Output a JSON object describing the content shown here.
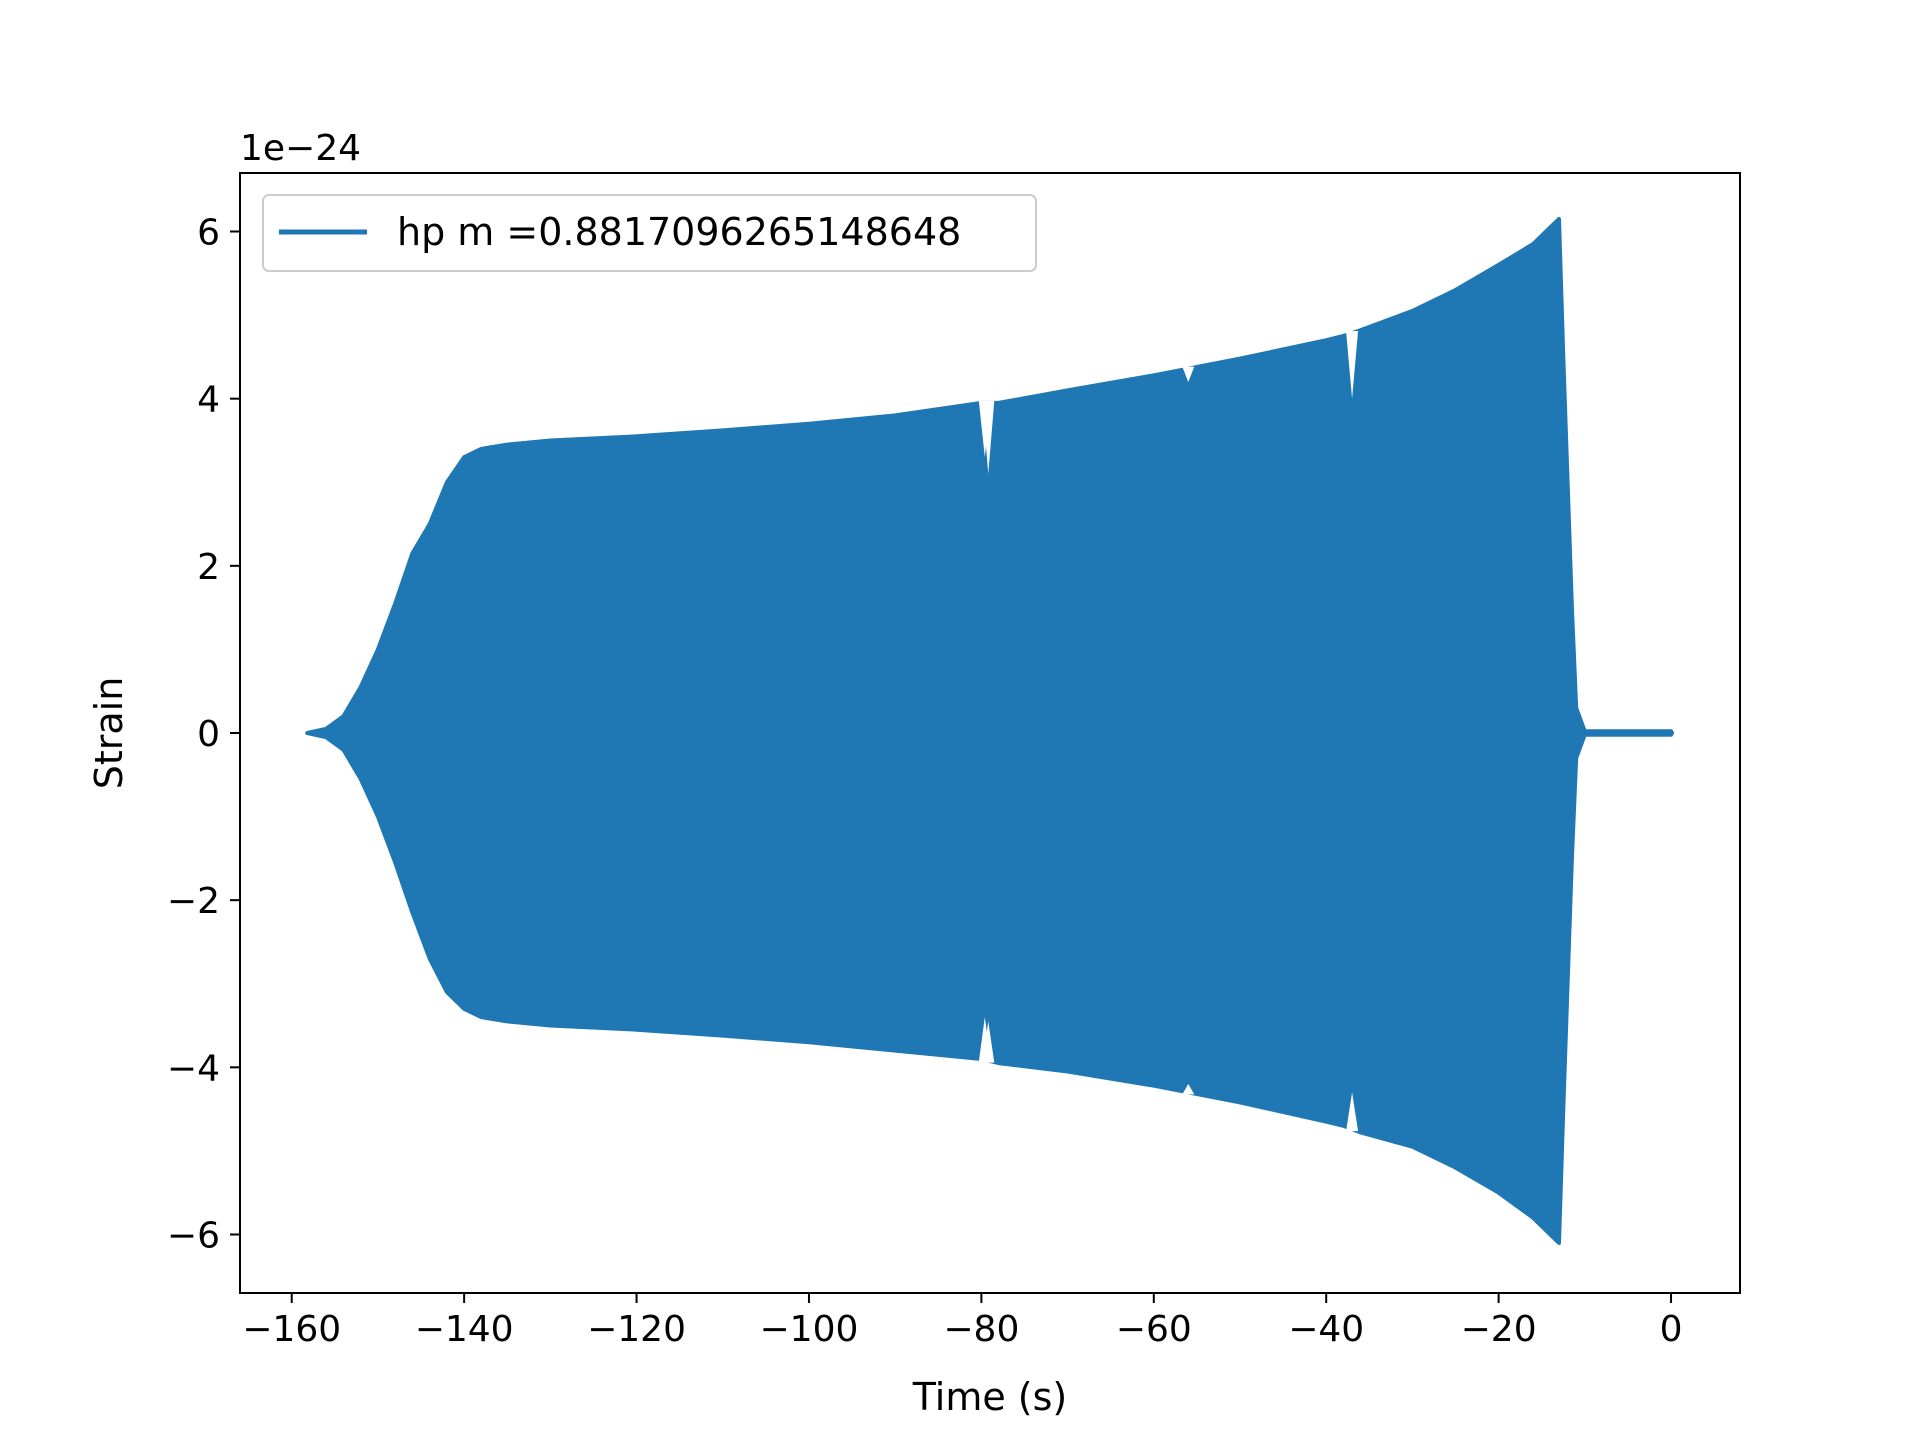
{
  "chart_data": {
    "type": "line",
    "title": "",
    "xlabel": "Time (s)",
    "ylabel": "Strain",
    "y_offset_label": "1e−24",
    "xlim": [
      -166,
      8
    ],
    "ylim": [
      -6.7,
      6.7
    ],
    "x_ticks": [
      -160,
      -140,
      -120,
      -100,
      -80,
      -60,
      -40,
      -20,
      0
    ],
    "x_tick_labels": [
      "−160",
      "−140",
      "−120",
      "−100",
      "−80",
      "−60",
      "−40",
      "−20",
      "0"
    ],
    "y_ticks": [
      -6,
      -4,
      -2,
      0,
      2,
      4,
      6
    ],
    "y_tick_labels": [
      "−6",
      "−4",
      "−2",
      "0",
      "2",
      "4",
      "6"
    ],
    "grid": false,
    "legend_position": "top-left",
    "series": [
      {
        "name": "hp m =0.8817096265148648",
        "color": "#1f77b4",
        "envelope_upper": {
          "x": [
            -158.2,
            -156,
            -154,
            -152,
            -150,
            -148,
            -146,
            -144,
            -142,
            -140,
            -138,
            -135,
            -130,
            -120,
            -110,
            -100,
            -90,
            -80,
            -78,
            -70,
            -60,
            -50,
            -40,
            -38,
            -36,
            -30,
            -25,
            -20,
            -16,
            -14,
            -13,
            -12.5,
            -12,
            -11.5,
            -11,
            -10,
            -5,
            0
          ],
          "y": [
            0.0,
            0.05,
            0.2,
            0.55,
            1.0,
            1.55,
            2.15,
            2.5,
            3.0,
            3.3,
            3.4,
            3.45,
            3.5,
            3.55,
            3.62,
            3.7,
            3.8,
            3.95,
            3.95,
            4.1,
            4.28,
            4.48,
            4.7,
            4.75,
            4.82,
            5.05,
            5.3,
            5.6,
            5.85,
            6.05,
            6.15,
            4.5,
            3.0,
            1.5,
            0.3,
            0.02,
            0.02,
            0.02
          ]
        },
        "envelope_lower": {
          "x": [
            -158.2,
            -156,
            -154,
            -152,
            -150,
            -148,
            -146,
            -144,
            -142,
            -140,
            -138,
            -135,
            -130,
            -120,
            -110,
            -100,
            -90,
            -80,
            -78,
            -70,
            -60,
            -50,
            -40,
            -38,
            -36,
            -30,
            -25,
            -20,
            -16,
            -14,
            -13,
            -12.5,
            -12,
            -11.5,
            -11,
            -10,
            -5,
            0
          ],
          "y": [
            0.0,
            -0.05,
            -0.2,
            -0.55,
            -1.0,
            -1.55,
            -2.15,
            -2.7,
            -3.1,
            -3.3,
            -3.4,
            -3.45,
            -3.5,
            -3.55,
            -3.62,
            -3.7,
            -3.8,
            -3.9,
            -3.95,
            -4.05,
            -4.22,
            -4.42,
            -4.65,
            -4.7,
            -4.78,
            -4.95,
            -5.2,
            -5.5,
            -5.8,
            -6.0,
            -6.1,
            -4.5,
            -3.0,
            -1.5,
            -0.3,
            -0.02,
            -0.02,
            -0.02
          ]
        },
        "dips": [
          {
            "x": -79.2,
            "upper_y": 3.1,
            "lower_y": -3.45
          },
          {
            "x": -79.6,
            "upper_y": 3.3,
            "lower_y": -3.4
          },
          {
            "x": -37.0,
            "upper_y": 4.0,
            "lower_y": -4.3
          },
          {
            "x": -56.0,
            "upper_y": 4.2,
            "lower_y": -4.2
          }
        ]
      }
    ]
  }
}
